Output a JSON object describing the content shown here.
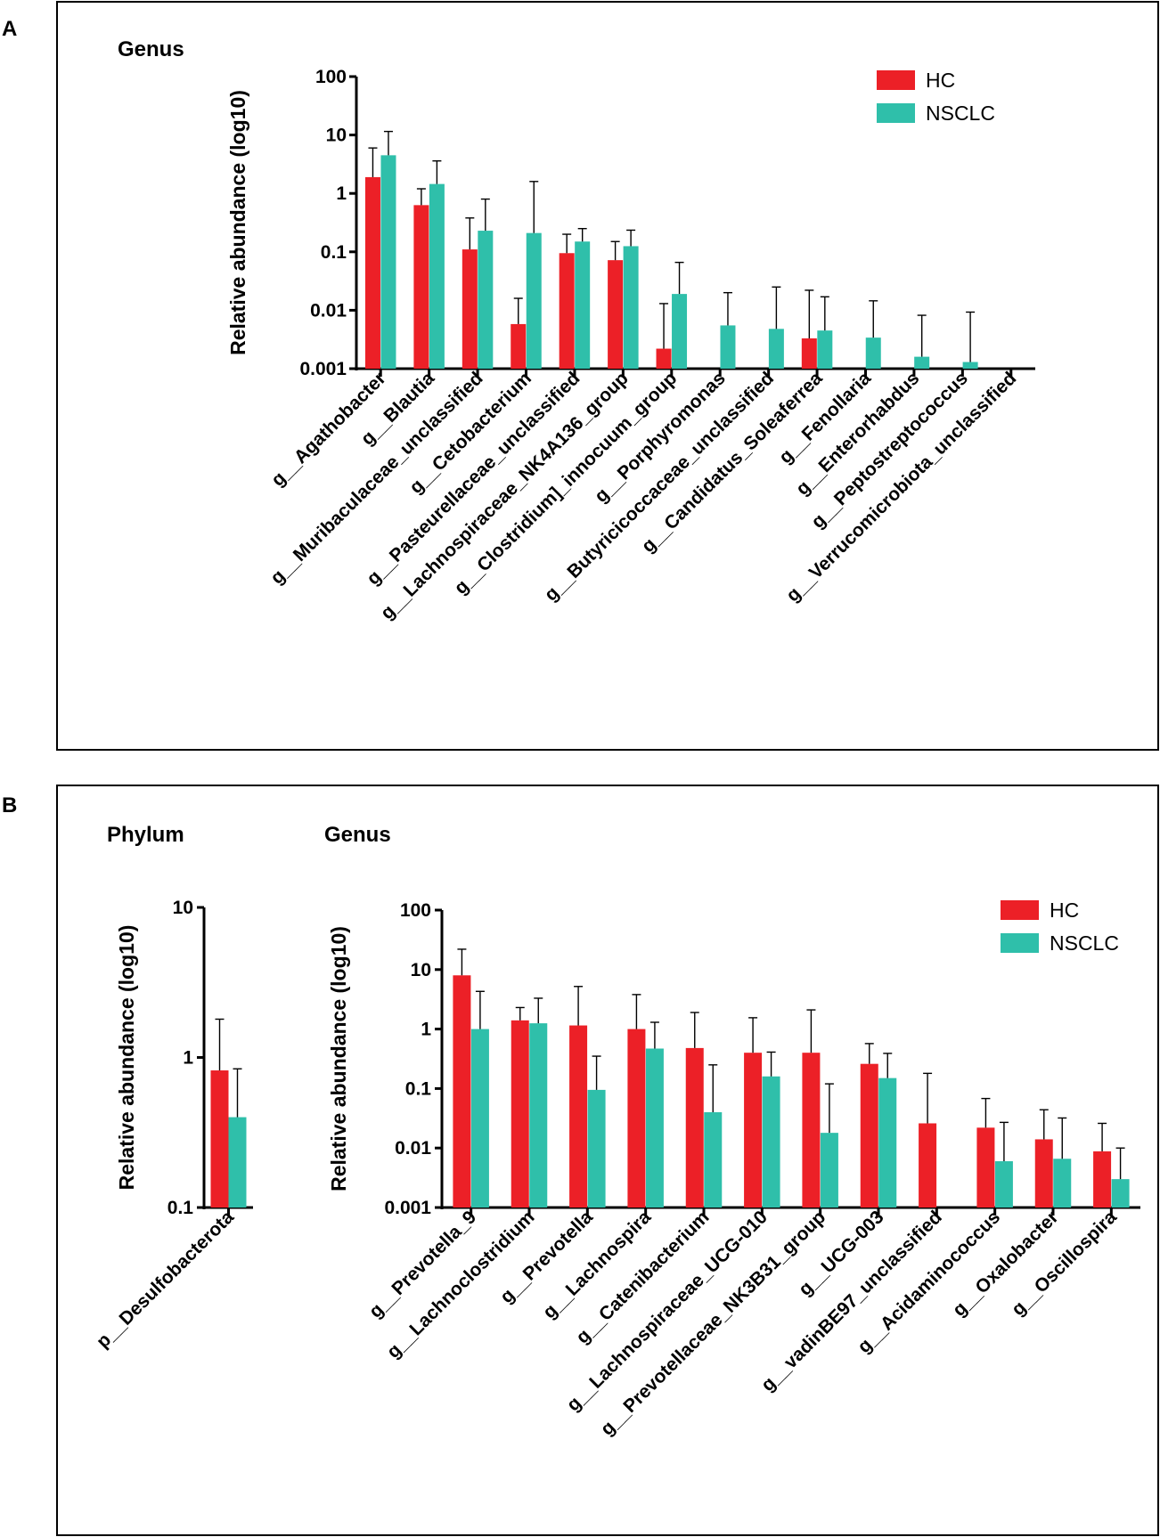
{
  "panels": {
    "A": {
      "letter": "A",
      "title": "Genus"
    },
    "B": {
      "letter": "B",
      "phylum_title": "Phylum",
      "genus_title": "Genus"
    }
  },
  "colors": {
    "HC": "#ec2027",
    "NSCLC": "#2fbfaa"
  },
  "chart_data": [
    {
      "id": "A-genus",
      "type": "bar",
      "title": "Genus",
      "ylabel": "Relative abundance (log10)",
      "xlabel": "",
      "yscale": "log10",
      "ylim": [
        0.001,
        100
      ],
      "yticks": [
        "0.001",
        "0.01",
        "0.1",
        "1",
        "10",
        "100"
      ],
      "legend": "top-right",
      "categories": [
        "g__Agathobacter",
        "g__Blautia",
        "g__Muribaculaceae_unclassified",
        "g__Cetobacterium",
        "g__Pasteurellaceae_unclassified",
        "g__Lachnospiraceae_NK4A136_group",
        "g__Clostridium]_innocuum_group",
        "g__Porphyromonas",
        "g__Butyricicoccaceae_unclassified",
        "g__Candidatus_Soleaferrea",
        "g__Fenollaria",
        "g__Enterorhabdus",
        "g__Peptostreptococcus",
        "g__Verrucomicrobiota_unclassified"
      ],
      "series": [
        {
          "name": "HC",
          "values": [
            1.9,
            0.63,
            0.11,
            0.0058,
            0.095,
            0.072,
            0.0022,
            null,
            null,
            0.0033,
            null,
            null,
            null,
            null
          ],
          "error_upper": [
            6.0,
            1.2,
            0.38,
            0.016,
            0.2,
            0.15,
            0.013,
            null,
            null,
            0.022,
            null,
            null,
            null,
            null
          ]
        },
        {
          "name": "NSCLC",
          "values": [
            4.5,
            1.45,
            0.23,
            0.21,
            0.15,
            0.125,
            0.019,
            0.0055,
            0.0048,
            0.0045,
            0.0034,
            0.0016,
            0.0013,
            null
          ],
          "error_upper": [
            11.5,
            3.6,
            0.8,
            1.6,
            0.25,
            0.235,
            0.066,
            0.02,
            0.025,
            0.017,
            0.0145,
            0.0082,
            0.0093,
            null
          ]
        }
      ]
    },
    {
      "id": "B-phylum",
      "type": "bar",
      "title": "Phylum",
      "ylabel": "Relative abundance (log10)",
      "xlabel": "",
      "yscale": "log10",
      "ylim": [
        0.1,
        10
      ],
      "yticks": [
        "0.1",
        "1",
        "10"
      ],
      "categories": [
        "p__Desulfobacterota"
      ],
      "series": [
        {
          "name": "HC",
          "values": [
            0.82
          ],
          "error_upper": [
            1.8
          ]
        },
        {
          "name": "NSCLC",
          "values": [
            0.4
          ],
          "error_upper": [
            0.84
          ]
        }
      ]
    },
    {
      "id": "B-genus",
      "type": "bar",
      "title": "Genus",
      "ylabel": "Relative abundance (log10)",
      "xlabel": "",
      "yscale": "log10",
      "ylim": [
        0.001,
        100
      ],
      "yticks": [
        "0.001",
        "0.01",
        "0.1",
        "1",
        "10",
        "100"
      ],
      "legend": "top-right",
      "categories": [
        "g__Prevotella_9",
        "g__Lachnoclostridium",
        "g__Prevotella",
        "g__Lachnospira",
        "g__Catenibacterium",
        "g__Lachnospiraceae_UCG-010",
        "g__Prevotellaceae_NK3B31_group",
        "g__UCG-003",
        "g__vadinBE97_unclassified",
        "g__Acidaminococcus",
        "g__Oxalobacter",
        "g__Oscillospira"
      ],
      "series": [
        {
          "name": "HC",
          "values": [
            8.0,
            1.4,
            1.15,
            1.0,
            0.48,
            0.4,
            0.4,
            0.26,
            0.026,
            0.022,
            0.014,
            0.0088
          ],
          "error_upper": [
            22,
            2.3,
            5.2,
            3.8,
            1.9,
            1.55,
            2.1,
            0.57,
            0.18,
            0.068,
            0.044,
            0.026
          ]
        },
        {
          "name": "NSCLC",
          "values": [
            1.0,
            1.25,
            0.095,
            0.47,
            0.04,
            0.16,
            0.018,
            0.15,
            null,
            0.006,
            0.0066,
            0.003
          ],
          "error_upper": [
            4.3,
            3.3,
            0.35,
            1.3,
            0.25,
            0.41,
            0.12,
            0.39,
            null,
            0.027,
            0.032,
            0.01
          ]
        }
      ]
    }
  ]
}
